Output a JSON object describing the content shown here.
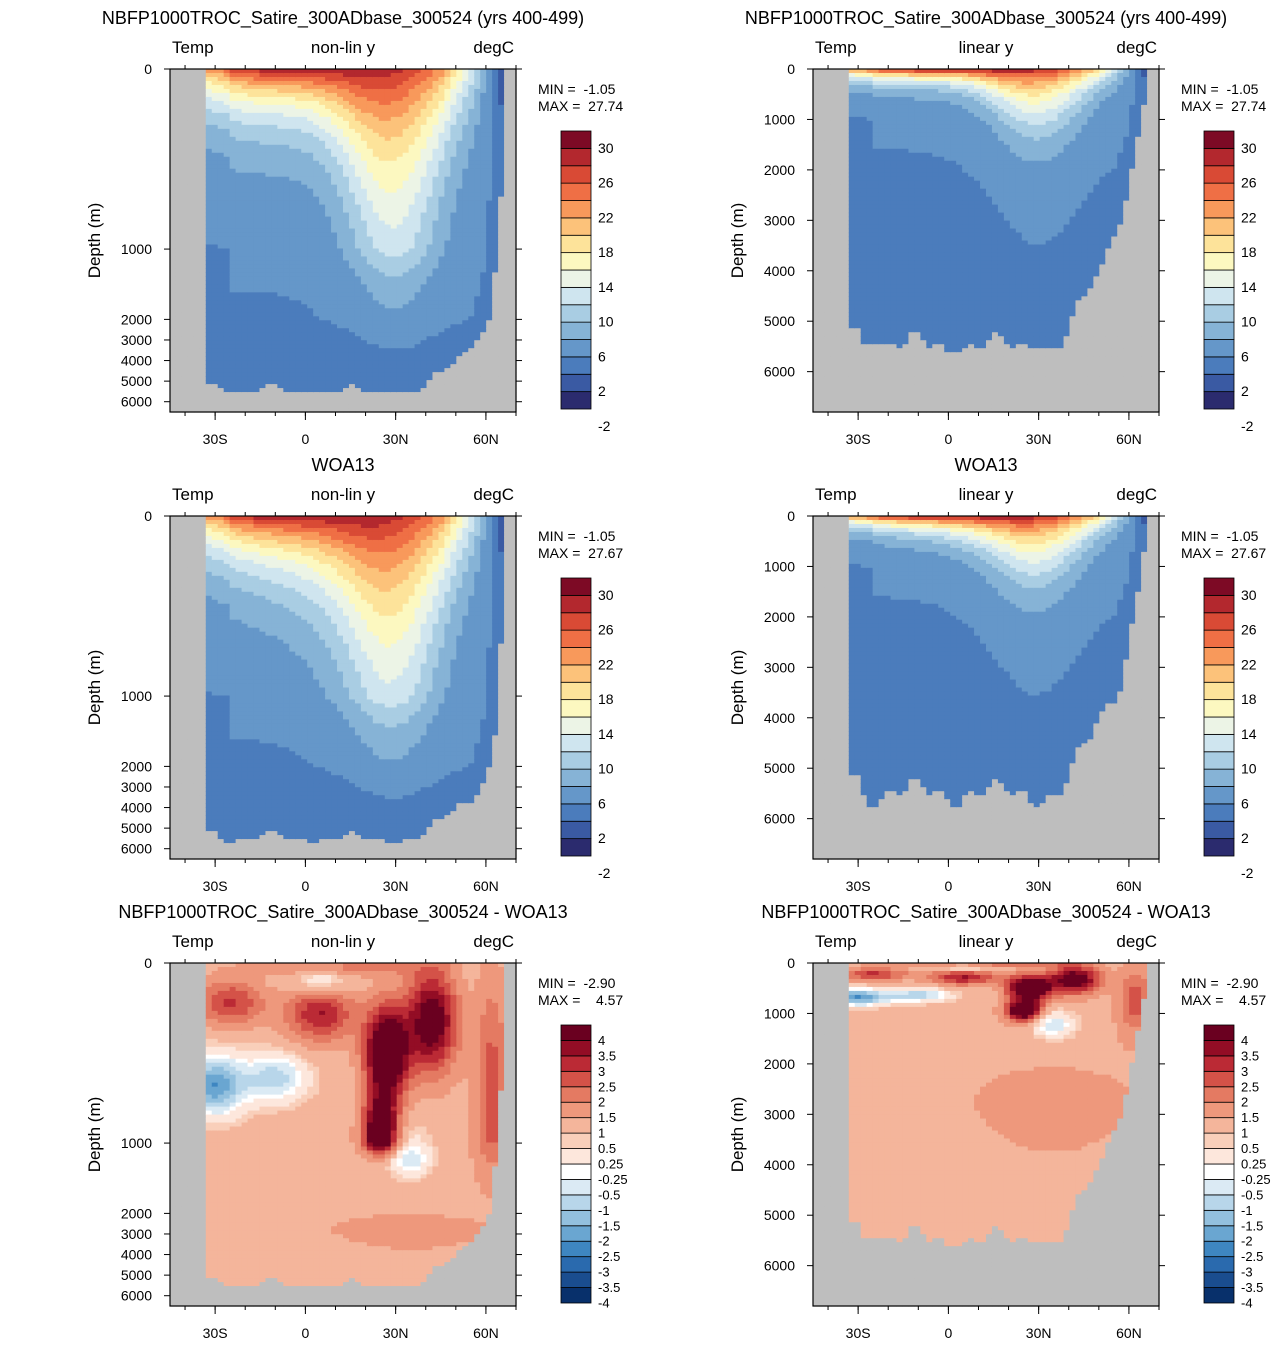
{
  "chart_data": [
    {
      "id": "model_nonlin",
      "type": "heatmap",
      "title": "NBFP1000TROC_Satire_300ADbase_300524 (yrs 400-499)",
      "left_label": "Temp",
      "center_label": "non-lin y",
      "right_label": "degC",
      "ylabel": "Depth (m)",
      "yscale": "nonlinear",
      "yticks": [
        "0",
        "1000",
        "2000",
        "3000",
        "4000",
        "5000",
        "6000"
      ],
      "xticks": [
        "30S",
        "0",
        "30N",
        "60N"
      ],
      "xlim": [
        -45,
        70
      ],
      "ylim": [
        0,
        6800
      ],
      "min_label": "MIN =  -1.05",
      "max_label": "MAX =  27.74",
      "field": "temp",
      "variant": "model",
      "colorbar_labels": [
        "30",
        "26",
        "22",
        "18",
        "14",
        "10",
        "6",
        "2",
        "-2"
      ]
    },
    {
      "id": "model_lin",
      "type": "heatmap",
      "title": "NBFP1000TROC_Satire_300ADbase_300524 (yrs 400-499)",
      "left_label": "Temp",
      "center_label": "linear y",
      "right_label": "degC",
      "ylabel": "Depth (m)",
      "yscale": "linear",
      "yticks": [
        "0",
        "1000",
        "2000",
        "3000",
        "4000",
        "5000",
        "6000"
      ],
      "xticks": [
        "30S",
        "0",
        "30N",
        "60N"
      ],
      "xlim": [
        -45,
        70
      ],
      "ylim": [
        0,
        6800
      ],
      "min_label": "MIN =  -1.05",
      "max_label": "MAX =  27.74",
      "field": "temp",
      "variant": "model",
      "colorbar_labels": [
        "30",
        "26",
        "22",
        "18",
        "14",
        "10",
        "6",
        "2",
        "-2"
      ]
    },
    {
      "id": "woa_nonlin",
      "type": "heatmap",
      "title": "WOA13",
      "left_label": "Temp",
      "center_label": "non-lin y",
      "right_label": "degC",
      "ylabel": "Depth (m)",
      "yscale": "nonlinear",
      "yticks": [
        "0",
        "1000",
        "2000",
        "3000",
        "4000",
        "5000",
        "6000"
      ],
      "xticks": [
        "30S",
        "0",
        "30N",
        "60N"
      ],
      "xlim": [
        -45,
        70
      ],
      "ylim": [
        0,
        6800
      ],
      "min_label": "MIN =  -1.05",
      "max_label": "MAX =  27.67",
      "field": "temp",
      "variant": "woa",
      "colorbar_labels": [
        "30",
        "26",
        "22",
        "18",
        "14",
        "10",
        "6",
        "2",
        "-2"
      ]
    },
    {
      "id": "woa_lin",
      "type": "heatmap",
      "title": "WOA13",
      "left_label": "Temp",
      "center_label": "linear y",
      "right_label": "degC",
      "ylabel": "Depth (m)",
      "yscale": "linear",
      "yticks": [
        "0",
        "1000",
        "2000",
        "3000",
        "4000",
        "5000",
        "6000"
      ],
      "xticks": [
        "30S",
        "0",
        "30N",
        "60N"
      ],
      "xlim": [
        -45,
        70
      ],
      "ylim": [
        0,
        6800
      ],
      "min_label": "MIN =  -1.05",
      "max_label": "MAX =  27.67",
      "field": "temp",
      "variant": "woa",
      "colorbar_labels": [
        "30",
        "26",
        "22",
        "18",
        "14",
        "10",
        "6",
        "2",
        "-2"
      ]
    },
    {
      "id": "diff_nonlin",
      "type": "heatmap",
      "title": "NBFP1000TROC_Satire_300ADbase_300524 - WOA13",
      "left_label": "Temp",
      "center_label": "non-lin y",
      "right_label": "degC",
      "ylabel": "Depth (m)",
      "yscale": "nonlinear",
      "yticks": [
        "0",
        "1000",
        "2000",
        "3000",
        "4000",
        "5000",
        "6000"
      ],
      "xticks": [
        "30S",
        "0",
        "30N",
        "60N"
      ],
      "xlim": [
        -45,
        70
      ],
      "ylim": [
        0,
        6800
      ],
      "min_label": "MIN =  -2.90",
      "max_label": "MAX =    4.57",
      "field": "diff",
      "variant": "diff",
      "colorbar_labels": [
        "4",
        "3.5",
        "3",
        "2.5",
        "2",
        "1.5",
        "1",
        "0.5",
        "0.25",
        "-0.25",
        "-0.5",
        "-1",
        "-1.5",
        "-2",
        "-2.5",
        "-3",
        "-3.5",
        "-4"
      ]
    },
    {
      "id": "diff_lin",
      "type": "heatmap",
      "title": "NBFP1000TROC_Satire_300ADbase_300524 - WOA13",
      "left_label": "Temp",
      "center_label": "linear y",
      "right_label": "degC",
      "ylabel": "Depth (m)",
      "yscale": "linear",
      "yticks": [
        "0",
        "1000",
        "2000",
        "3000",
        "4000",
        "5000",
        "6000"
      ],
      "xticks": [
        "30S",
        "0",
        "30N",
        "60N"
      ],
      "xlim": [
        -45,
        70
      ],
      "ylim": [
        0,
        6800
      ],
      "min_label": "MIN =  -2.90",
      "max_label": "MAX =    4.57",
      "field": "diff",
      "variant": "diff",
      "colorbar_labels": [
        "4",
        "3.5",
        "3",
        "2.5",
        "2",
        "1.5",
        "1",
        "0.5",
        "0.25",
        "-0.25",
        "-0.5",
        "-1",
        "-1.5",
        "-2",
        "-2.5",
        "-3",
        "-3.5",
        "-4"
      ]
    }
  ],
  "colors": {
    "temp_bins": [
      "#2b2b6e",
      "#3a5aa3",
      "#4b7cbc",
      "#6597c9",
      "#86b3d6",
      "#a9cde3",
      "#cfe5ef",
      "#ecf4e6",
      "#fcf8c0",
      "#fde39a",
      "#fcc27a",
      "#f8995b",
      "#ef6f45",
      "#d94a35",
      "#b3282e",
      "#7d0a25"
    ],
    "diff_bins": [
      "#08306b",
      "#1a4d8f",
      "#2a6aae",
      "#3e86c1",
      "#6aa6d1",
      "#93c0de",
      "#b8d6ea",
      "#dbeaf4",
      "#ffffff",
      "#fde7dc",
      "#f9cfba",
      "#f4b59b",
      "#ee987c",
      "#e47a62",
      "#d45248",
      "#bb2a35",
      "#930d25",
      "#6a0020"
    ],
    "land": "#bebebe"
  }
}
